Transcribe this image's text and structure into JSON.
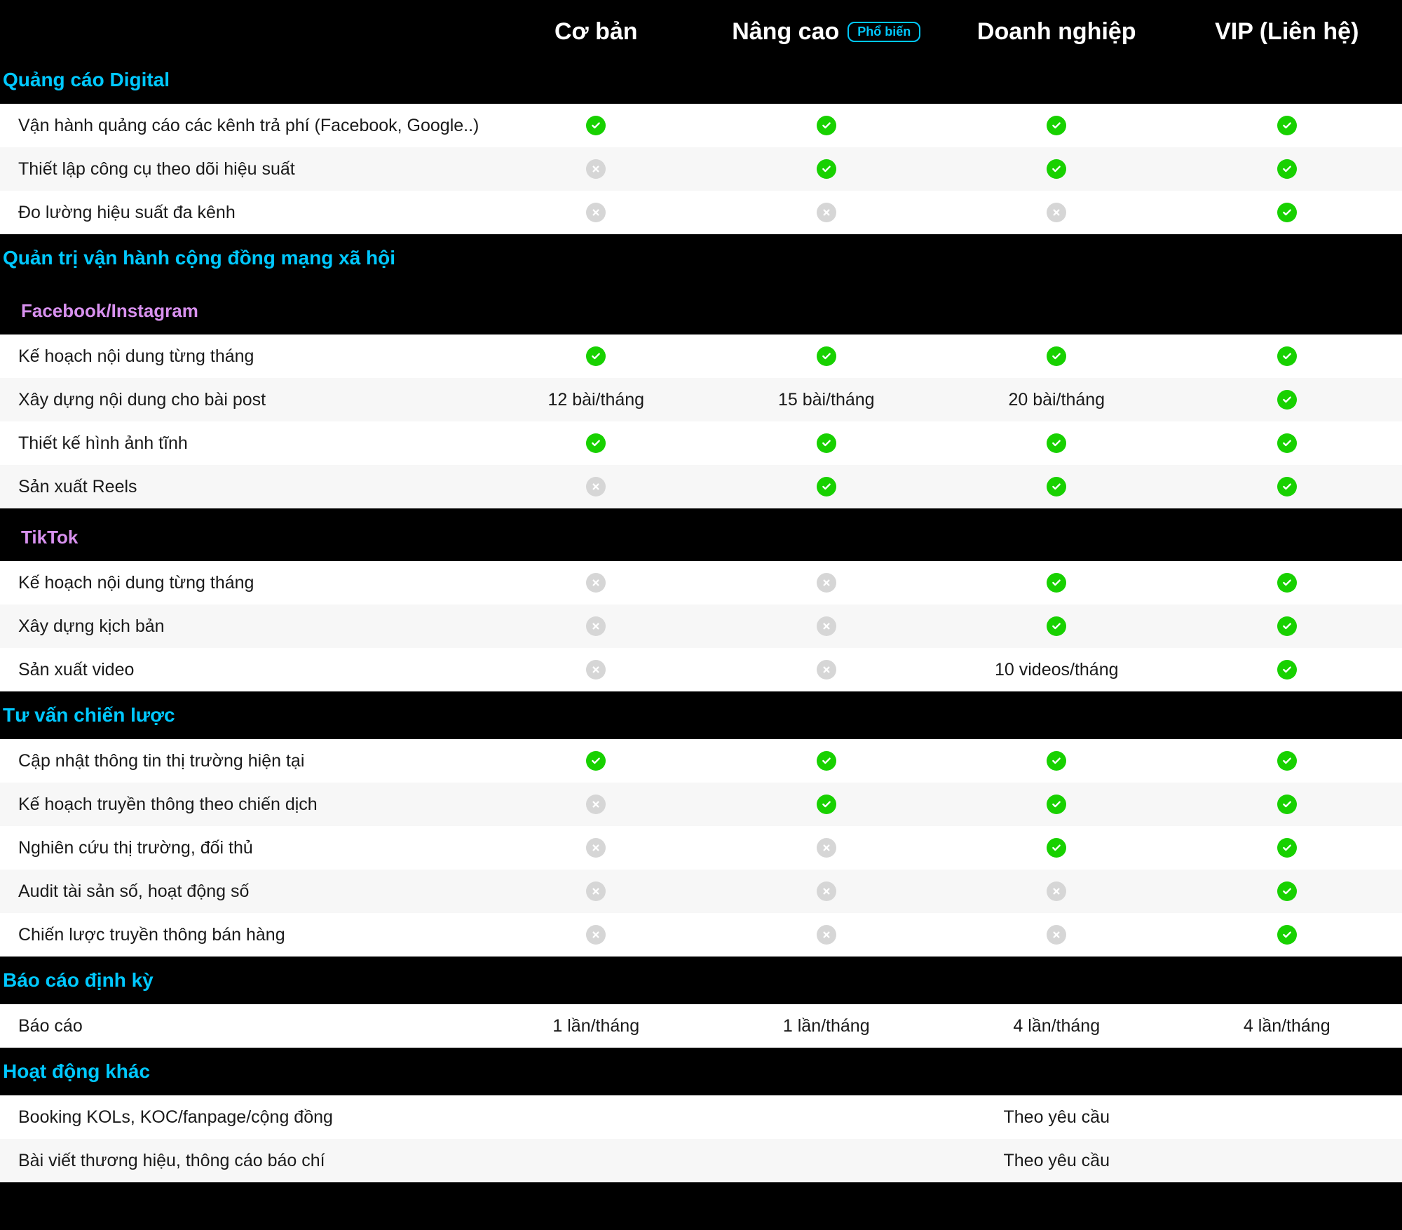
{
  "colors": {
    "background_dark": "#000000",
    "section_heading": "#00c8ff",
    "subsection_heading": "#d891ef",
    "badge_border": "#00c8ff",
    "check_fill": "#18d100",
    "x_fill": "#d6d6d6",
    "row_bg": "#ffffff",
    "row_bg_alt": "#f7f7f7"
  },
  "plans": [
    {
      "name": "Cơ bản",
      "badge": null
    },
    {
      "name": "Nâng cao",
      "badge": "Phổ biến"
    },
    {
      "name": "Doanh nghiệp",
      "badge": null
    },
    {
      "name": "VIP (Liên hệ)",
      "badge": null
    }
  ],
  "sections": [
    {
      "title": "Quảng cáo Digital",
      "tight": true,
      "subsections": [
        {
          "title": null,
          "rows": [
            {
              "label": "Vận hành quảng cáo các kênh trả phí (Facebook, Google..)",
              "values": [
                "check",
                "check",
                "check",
                "check"
              ]
            },
            {
              "label": "Thiết lập công cụ theo dõi hiệu suất",
              "values": [
                "x",
                "check",
                "check",
                "check"
              ]
            },
            {
              "label": "Đo lường hiệu suất đa kênh",
              "values": [
                "x",
                "x",
                "x",
                "check"
              ]
            }
          ]
        }
      ]
    },
    {
      "title": "Quản trị vận hành cộng đồng mạng xã hội",
      "subsections": [
        {
          "title": "Facebook/Instagram",
          "rows": [
            {
              "label": "Kế hoạch nội dung từng tháng",
              "values": [
                "check",
                "check",
                "check",
                "check"
              ]
            },
            {
              "label": "Xây dựng nội dung cho bài post",
              "values": [
                "12 bài/tháng",
                "15 bài/tháng",
                "20 bài/tháng",
                "check"
              ]
            },
            {
              "label": "Thiết kế hình ảnh tĩnh",
              "values": [
                "check",
                "check",
                "check",
                "check"
              ]
            },
            {
              "label": "Sản xuất Reels",
              "values": [
                "x",
                "check",
                "check",
                "check"
              ]
            }
          ]
        },
        {
          "title": "TikTok",
          "rows": [
            {
              "label": "Kế hoạch nội dung từng tháng",
              "values": [
                "x",
                "x",
                "check",
                "check"
              ]
            },
            {
              "label": "Xây dựng kịch bản",
              "values": [
                "x",
                "x",
                "check",
                "check"
              ]
            },
            {
              "label": "Sản xuất video",
              "values": [
                "x",
                "x",
                "10 videos/tháng",
                "check"
              ]
            }
          ]
        }
      ]
    },
    {
      "title": "Tư vấn chiến lược",
      "subsections": [
        {
          "title": null,
          "rows": [
            {
              "label": "Cập nhật thông tin thị trường hiện tại",
              "values": [
                "check",
                "check",
                "check",
                "check"
              ]
            },
            {
              "label": "Kế hoạch truyền thông theo chiến dịch",
              "values": [
                "x",
                "check",
                "check",
                "check"
              ]
            },
            {
              "label": "Nghiên cứu thị trường, đối thủ",
              "values": [
                "x",
                "x",
                "check",
                "check"
              ]
            },
            {
              "label": "Audit tài sản số, hoạt động số",
              "values": [
                "x",
                "x",
                "x",
                "check"
              ]
            },
            {
              "label": "Chiến lược truyền thông bán hàng",
              "values": [
                "x",
                "x",
                "x",
                "check"
              ]
            }
          ]
        }
      ]
    },
    {
      "title": "Báo cáo định kỳ",
      "subsections": [
        {
          "title": null,
          "rows": [
            {
              "label": "Báo cáo",
              "values": [
                "1 lần/tháng",
                "1 lần/tháng",
                "4 lần/tháng",
                "4 lần/tháng"
              ]
            }
          ]
        }
      ]
    },
    {
      "title": "Hoạt động khác",
      "subsections": [
        {
          "title": null,
          "rows": [
            {
              "label": "Booking KOLs, KOC/fanpage/cộng đồng",
              "values": [
                "",
                "",
                "Theo yêu cầu",
                ""
              ]
            },
            {
              "label": "Bài viết thương hiệu, thông cáo báo chí",
              "values": [
                "",
                "",
                "Theo yêu cầu",
                ""
              ]
            }
          ]
        }
      ]
    }
  ]
}
